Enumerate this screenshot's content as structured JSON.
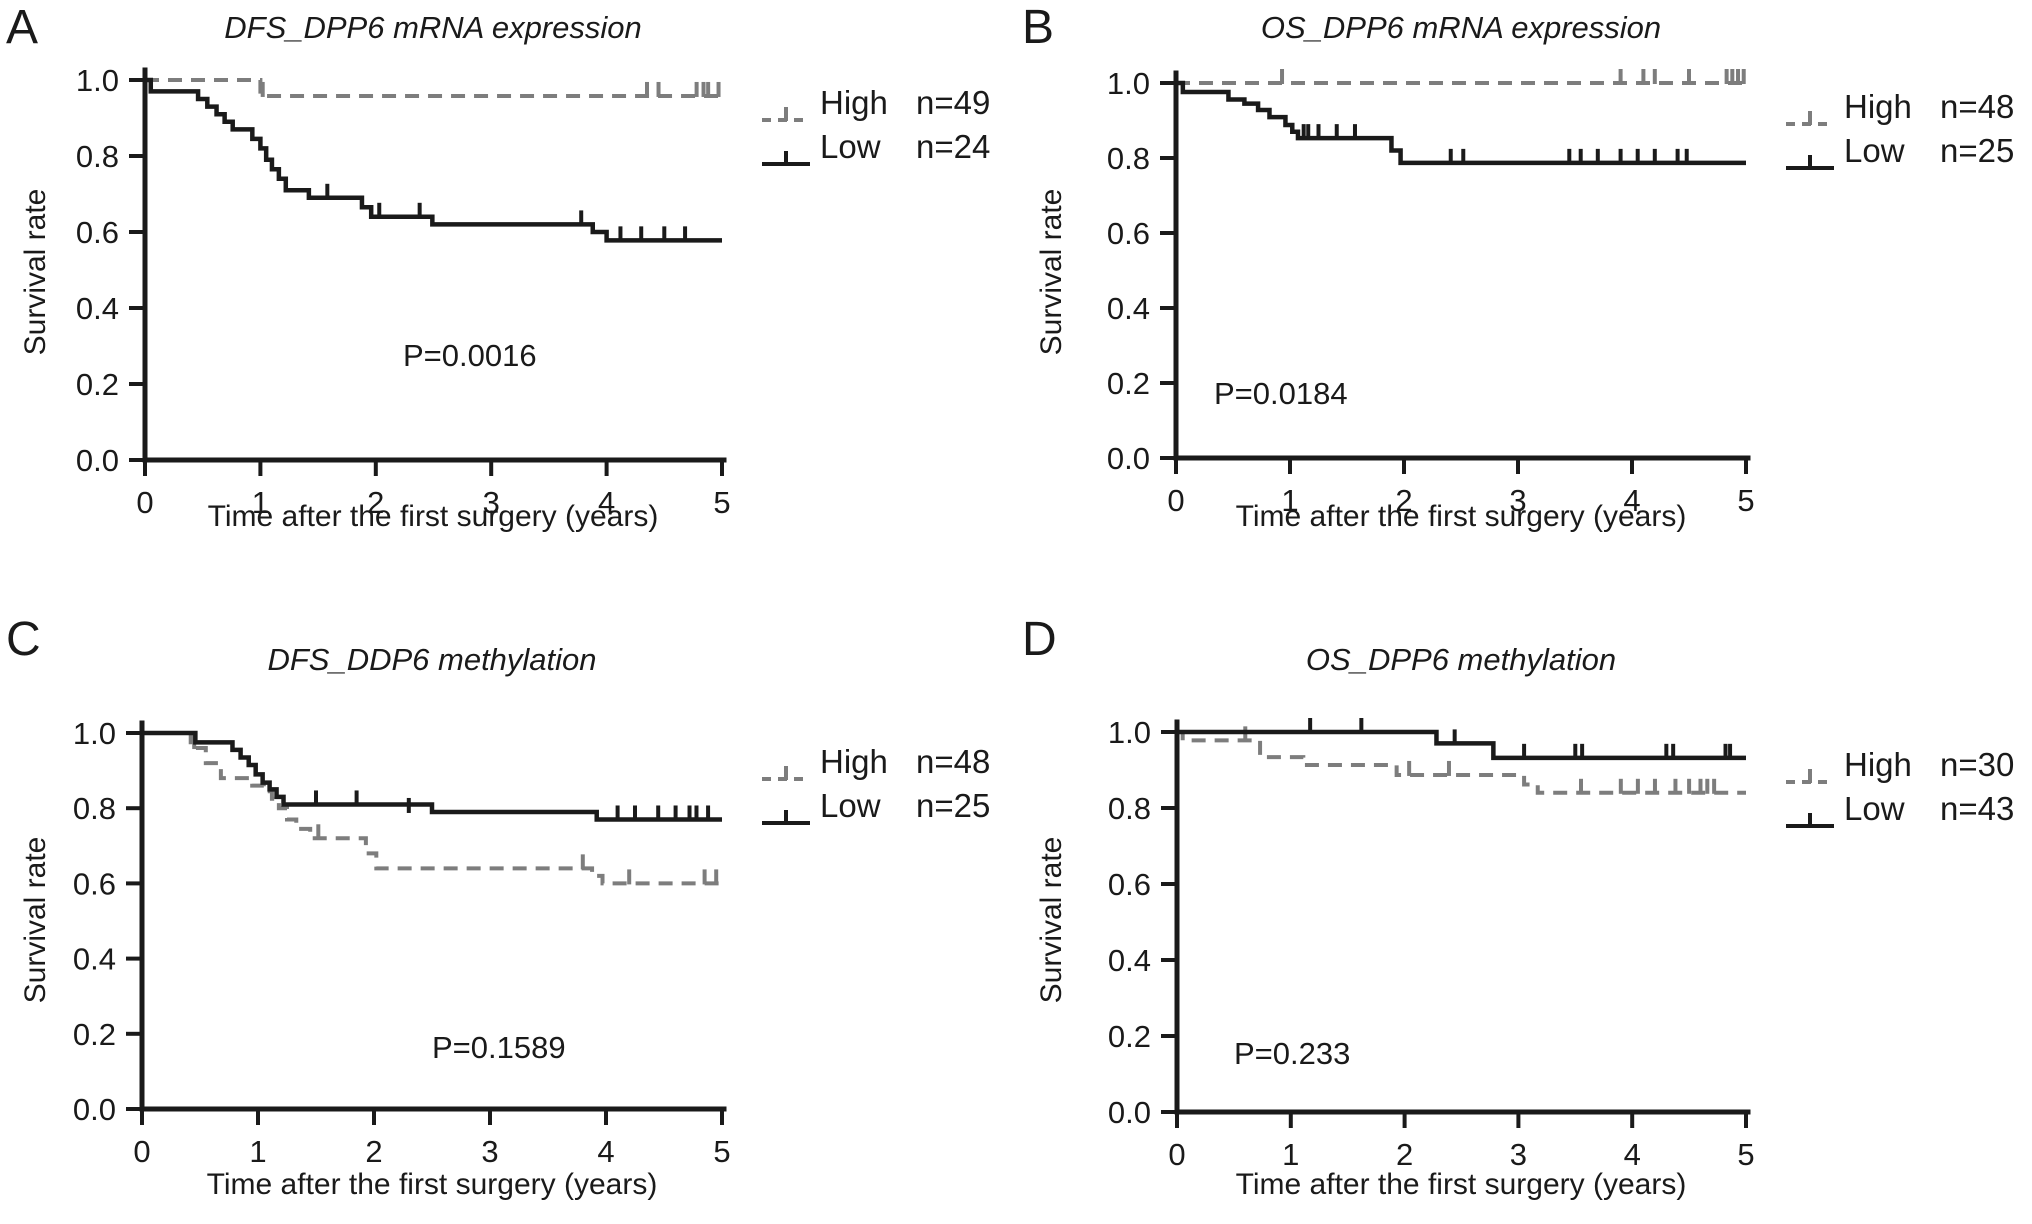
{
  "figure": {
    "background": "#ffffff",
    "axis_color": "#1a1a1a",
    "solid_color": "#1a1a1a",
    "dashed_color": "#7d7d7d"
  },
  "chart_data": [
    {
      "type": "line",
      "subtype": "kaplan-meier-step",
      "letter": "A",
      "title": "DFS_DPP6 mRNA expression",
      "p_value": "P=0.0016",
      "xlabel": "Time after the first surgery (years)",
      "ylabel": "Survival rate",
      "xlim": [
        0,
        5
      ],
      "ylim": [
        0,
        1
      ],
      "xticks": [
        0,
        1,
        2,
        3,
        4,
        5
      ],
      "yticks": [
        0,
        0.2,
        0.4,
        0.6,
        0.8,
        1
      ],
      "grid": false,
      "legend_position": "right-top",
      "series": [
        {
          "name": "High",
          "n_label": "n=49",
          "style": "dashed",
          "color": "#7d7d7d",
          "points": [
            [
              0,
              1.0
            ],
            [
              1.0,
              0.958
            ],
            [
              5,
              0.958
            ]
          ],
          "censors": [
            [
              1.02,
              0.958
            ],
            [
              4.35,
              0.958
            ],
            [
              4.45,
              0.958
            ],
            [
              4.78,
              0.958
            ],
            [
              4.84,
              0.958
            ],
            [
              4.88,
              0.958
            ],
            [
              4.97,
              0.958
            ]
          ]
        },
        {
          "name": "Low",
          "n_label": "n=24",
          "style": "solid",
          "color": "#1a1a1a",
          "points": [
            [
              0,
              1.0
            ],
            [
              0.05,
              0.97
            ],
            [
              0.46,
              0.95
            ],
            [
              0.54,
              0.93
            ],
            [
              0.62,
              0.91
            ],
            [
              0.69,
              0.89
            ],
            [
              0.76,
              0.87
            ],
            [
              0.93,
              0.845
            ],
            [
              1.0,
              0.82
            ],
            [
              1.05,
              0.79
            ],
            [
              1.1,
              0.765
            ],
            [
              1.16,
              0.74
            ],
            [
              1.22,
              0.71
            ],
            [
              1.42,
              0.69
            ],
            [
              1.88,
              0.665
            ],
            [
              1.96,
              0.64
            ],
            [
              2.49,
              0.62
            ],
            [
              3.88,
              0.6
            ],
            [
              4.0,
              0.578
            ],
            [
              5,
              0.578
            ]
          ],
          "censors": [
            [
              1.58,
              0.69
            ],
            [
              2.03,
              0.64
            ],
            [
              2.38,
              0.64
            ],
            [
              3.78,
              0.62
            ],
            [
              4.12,
              0.578
            ],
            [
              4.3,
              0.578
            ],
            [
              4.5,
              0.578
            ],
            [
              4.68,
              0.578
            ]
          ]
        }
      ]
    },
    {
      "type": "line",
      "subtype": "kaplan-meier-step",
      "letter": "B",
      "title": "OS_DPP6 mRNA expression",
      "p_value": "P=0.0184",
      "xlabel": "Time after the first surgery (years)",
      "ylabel": "Survival rate",
      "xlim": [
        0,
        5
      ],
      "ylim": [
        0,
        1
      ],
      "xticks": [
        0,
        1,
        2,
        3,
        4,
        5
      ],
      "yticks": [
        0,
        0.2,
        0.4,
        0.6,
        0.8,
        1
      ],
      "grid": false,
      "legend_position": "right-top",
      "series": [
        {
          "name": "High",
          "n_label": "n=48",
          "style": "dashed",
          "color": "#7d7d7d",
          "points": [
            [
              0,
              1.0
            ],
            [
              5,
              1.0
            ]
          ],
          "censors": [
            [
              0.93,
              1.0
            ],
            [
              3.9,
              1.0
            ],
            [
              4.1,
              1.0
            ],
            [
              4.2,
              1.0
            ],
            [
              4.5,
              1.0
            ],
            [
              4.83,
              1.0
            ],
            [
              4.88,
              1.0
            ],
            [
              4.93,
              1.0
            ],
            [
              4.98,
              1.0
            ]
          ]
        },
        {
          "name": "Low",
          "n_label": "n=25",
          "style": "solid",
          "color": "#1a1a1a",
          "points": [
            [
              0,
              1.0
            ],
            [
              0.06,
              0.976
            ],
            [
              0.46,
              0.956
            ],
            [
              0.6,
              0.945
            ],
            [
              0.72,
              0.928
            ],
            [
              0.82,
              0.909
            ],
            [
              0.96,
              0.888
            ],
            [
              1.02,
              0.87
            ],
            [
              1.07,
              0.853
            ],
            [
              1.89,
              0.82
            ],
            [
              1.97,
              0.787
            ],
            [
              5,
              0.787
            ]
          ],
          "censors": [
            [
              1.12,
              0.853
            ],
            [
              1.16,
              0.853
            ],
            [
              1.25,
              0.853
            ],
            [
              1.41,
              0.853
            ],
            [
              1.57,
              0.853
            ],
            [
              2.41,
              0.787
            ],
            [
              2.52,
              0.787
            ],
            [
              3.45,
              0.787
            ],
            [
              3.55,
              0.787
            ],
            [
              3.7,
              0.787
            ],
            [
              3.9,
              0.787
            ],
            [
              4.05,
              0.787
            ],
            [
              4.2,
              0.787
            ],
            [
              4.4,
              0.787
            ],
            [
              4.48,
              0.787
            ]
          ]
        }
      ]
    },
    {
      "type": "line",
      "subtype": "kaplan-meier-step",
      "letter": "C",
      "title": "DFS_DDP6 methylation",
      "p_value": "P=0.1589",
      "xlabel": "Time after the first surgery (years)",
      "ylabel": "Survival rate",
      "xlim": [
        0,
        5
      ],
      "ylim": [
        0,
        1
      ],
      "xticks": [
        0,
        1,
        2,
        3,
        4,
        5
      ],
      "yticks": [
        0,
        0.2,
        0.4,
        0.6,
        0.8,
        1
      ],
      "grid": false,
      "legend_position": "right-top",
      "series": [
        {
          "name": "High",
          "n_label": "n=48",
          "style": "dashed",
          "color": "#7d7d7d",
          "points": [
            [
              0,
              1.0
            ],
            [
              0.42,
              0.96
            ],
            [
              0.55,
              0.92
            ],
            [
              0.68,
              0.88
            ],
            [
              0.95,
              0.86
            ],
            [
              1.05,
              0.845
            ],
            [
              1.12,
              0.825
            ],
            [
              1.18,
              0.8
            ],
            [
              1.25,
              0.77
            ],
            [
              1.33,
              0.745
            ],
            [
              1.45,
              0.72
            ],
            [
              1.93,
              0.68
            ],
            [
              2.02,
              0.64
            ],
            [
              3.88,
              0.62
            ],
            [
              3.97,
              0.6
            ],
            [
              5,
              0.6
            ]
          ],
          "censors": [
            [
              0.45,
              0.96
            ],
            [
              1.52,
              0.72
            ],
            [
              3.8,
              0.64
            ],
            [
              4.2,
              0.6
            ],
            [
              4.85,
              0.6
            ],
            [
              4.95,
              0.6
            ]
          ]
        },
        {
          "name": "Low",
          "n_label": "n=25",
          "style": "solid",
          "color": "#1a1a1a",
          "points": [
            [
              0,
              1.0
            ],
            [
              0.46,
              0.975
            ],
            [
              0.78,
              0.955
            ],
            [
              0.85,
              0.935
            ],
            [
              0.92,
              0.915
            ],
            [
              0.98,
              0.89
            ],
            [
              1.04,
              0.868
            ],
            [
              1.1,
              0.85
            ],
            [
              1.16,
              0.83
            ],
            [
              1.22,
              0.81
            ],
            [
              2.5,
              0.79
            ],
            [
              3.92,
              0.77
            ],
            [
              5,
              0.77
            ]
          ],
          "censors": [
            [
              1.5,
              0.81
            ],
            [
              1.85,
              0.81
            ],
            [
              2.3,
              0.79
            ],
            [
              4.1,
              0.77
            ],
            [
              4.25,
              0.77
            ],
            [
              4.45,
              0.77
            ],
            [
              4.6,
              0.77
            ],
            [
              4.72,
              0.77
            ],
            [
              4.78,
              0.77
            ],
            [
              4.88,
              0.77
            ]
          ]
        }
      ]
    },
    {
      "type": "line",
      "subtype": "kaplan-meier-step",
      "letter": "D",
      "title": "OS_DPP6 methylation",
      "p_value": "P=0.233",
      "xlabel": "Time after the first surgery (years)",
      "ylabel": "Survival rate",
      "xlim": [
        0,
        5
      ],
      "ylim": [
        0,
        1
      ],
      "xticks": [
        0,
        1,
        2,
        3,
        4,
        5
      ],
      "yticks": [
        0,
        0.2,
        0.4,
        0.6,
        0.8,
        1
      ],
      "grid": false,
      "legend_position": "right-top",
      "series": [
        {
          "name": "High",
          "n_label": "n=30",
          "style": "dashed",
          "color": "#7d7d7d",
          "points": [
            [
              0,
              1.0
            ],
            [
              0.05,
              0.978
            ],
            [
              0.73,
              0.934
            ],
            [
              1.11,
              0.913
            ],
            [
              1.93,
              0.887
            ],
            [
              3.05,
              0.862
            ],
            [
              3.17,
              0.84
            ],
            [
              5,
              0.84
            ]
          ],
          "censors": [
            [
              0.6,
              0.978
            ],
            [
              2.04,
              0.887
            ],
            [
              2.39,
              0.887
            ],
            [
              3.55,
              0.84
            ],
            [
              3.9,
              0.84
            ],
            [
              4.05,
              0.84
            ],
            [
              4.2,
              0.84
            ],
            [
              4.38,
              0.84
            ],
            [
              4.5,
              0.84
            ],
            [
              4.6,
              0.84
            ],
            [
              4.66,
              0.84
            ],
            [
              4.72,
              0.84
            ]
          ]
        },
        {
          "name": "Low",
          "n_label": "n=43",
          "style": "solid",
          "color": "#1a1a1a",
          "points": [
            [
              0,
              1.0
            ],
            [
              2.28,
              0.97
            ],
            [
              2.78,
              0.932
            ],
            [
              5,
              0.932
            ]
          ],
          "censors": [
            [
              1.17,
              1.0
            ],
            [
              1.62,
              1.0
            ],
            [
              2.44,
              0.97
            ],
            [
              3.05,
              0.932
            ],
            [
              3.5,
              0.932
            ],
            [
              3.56,
              0.932
            ],
            [
              4.3,
              0.932
            ],
            [
              4.36,
              0.932
            ],
            [
              4.82,
              0.932
            ],
            [
              4.86,
              0.932
            ]
          ]
        }
      ]
    }
  ]
}
